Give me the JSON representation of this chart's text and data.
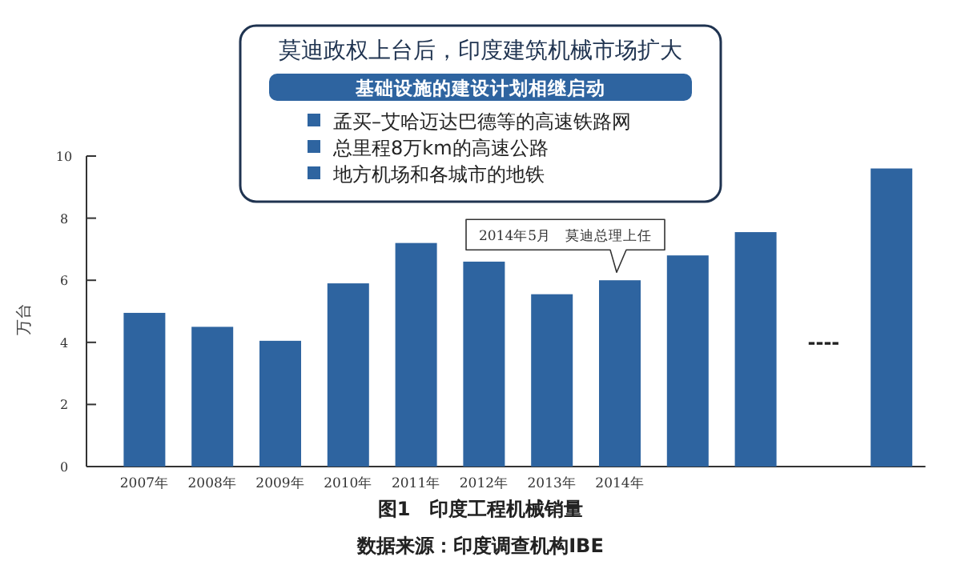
{
  "chart_data": {
    "type": "bar",
    "title": "莫迪政权上台后，印度建筑机械市场扩大",
    "subtitle": "基础设施的建设计划相继启动",
    "ylabel": "万台",
    "categories": [
      "2007年",
      "2008年",
      "2009年",
      "2010年",
      "2011年",
      "2012年",
      "2013年",
      "2014年",
      null,
      null,
      null,
      null
    ],
    "values": [
      4.95,
      4.5,
      4.05,
      5.9,
      7.2,
      6.6,
      5.55,
      6.0,
      6.8,
      7.55,
      null,
      9.6
    ],
    "color": "#2e64a0",
    "ylim": [
      0,
      10
    ],
    "yticks": [
      0,
      2,
      4,
      6,
      8,
      10
    ],
    "grid": false,
    "annotations": [
      "孟买–艾哈迈达巴德等的高速铁路网",
      "总里程8万km的高速公路",
      "地方机场和各城市的地铁",
      "----",
      {
        "text": "2014年5月　莫迪总理上任",
        "x": "2014年",
        "y": 6.0
      },
      "图1　印度工程机械销量",
      "数据来源：印度调查机构IBE"
    ]
  }
}
